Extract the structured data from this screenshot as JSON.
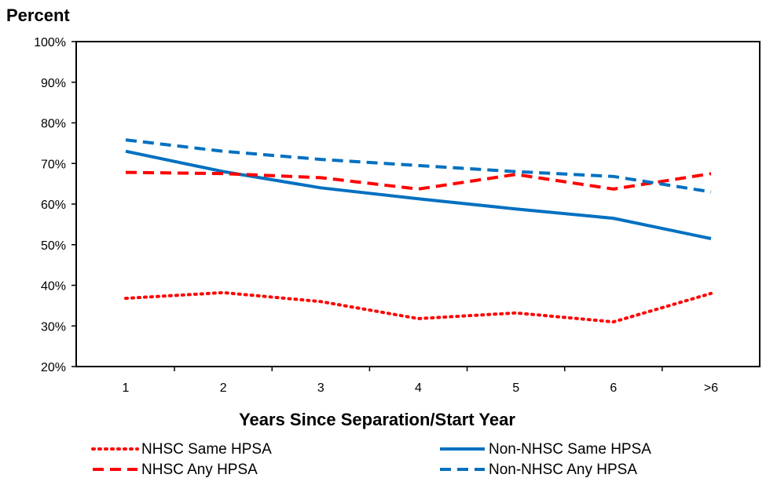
{
  "chart_data": {
    "type": "line",
    "ylabel": "Percent",
    "xlabel": "Years Since Separation/Start Year",
    "categories": [
      "1",
      "2",
      "3",
      "4",
      "5",
      "6",
      ">6"
    ],
    "yticks": [
      "20%",
      "30%",
      "40%",
      "50%",
      "60%",
      "70%",
      "80%",
      "90%",
      "100%"
    ],
    "ylim": [
      20,
      100
    ],
    "ytick_step": 10,
    "grid": false,
    "legend_position": "bottom",
    "series": [
      {
        "name": "NHSC Same HPSA",
        "values": [
          36.8,
          38.2,
          36.0,
          31.8,
          33.2,
          31.0,
          38.0
        ],
        "color": "#ff0000",
        "dash": "dotted"
      },
      {
        "name": "Non-NHSC Same HPSA",
        "values": [
          73.0,
          68.0,
          64.0,
          61.3,
          58.8,
          56.5,
          51.5
        ],
        "color": "#0070c0",
        "dash": "solid"
      },
      {
        "name": "NHSC Any HPSA",
        "values": [
          67.8,
          67.5,
          66.5,
          63.7,
          67.3,
          63.7,
          67.5
        ],
        "color": "#ff0000",
        "dash": "dashed"
      },
      {
        "name": "Non-NHSC Any HPSA",
        "values": [
          75.8,
          73.0,
          71.0,
          69.5,
          68.0,
          66.8,
          63.0
        ],
        "color": "#0070c0",
        "dash": "dashed"
      }
    ]
  }
}
